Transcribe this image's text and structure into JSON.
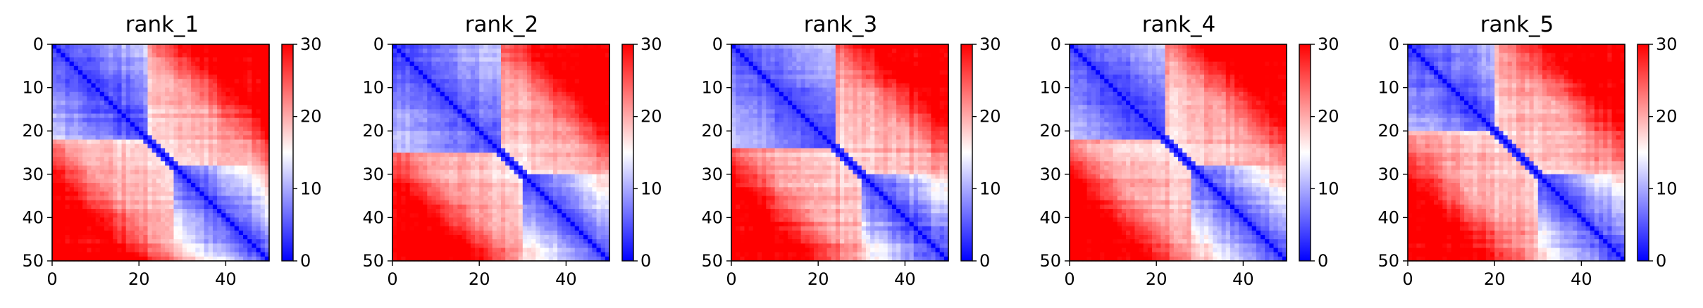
{
  "figure": {
    "panel_titles": [
      "rank_1",
      "rank_2",
      "rank_3",
      "rank_4",
      "rank_5"
    ]
  },
  "colors": {
    "low": "#0000ff",
    "mid": "#ffffff",
    "high": "#ff0000",
    "axis": "#000000",
    "background": "#ffffff"
  },
  "chart_data": [
    {
      "type": "heatmap",
      "title": "rank_1",
      "matrix_size": 50,
      "x_range": [
        0,
        50
      ],
      "y_range": [
        0,
        50
      ],
      "y_inverted": true,
      "x_ticks": [
        0,
        20,
        40
      ],
      "y_ticks": [
        0,
        10,
        20,
        30,
        40,
        50
      ],
      "colorbar": {
        "range": [
          0,
          30
        ],
        "ticks": [
          0,
          10,
          20,
          30
        ],
        "colormap": "bwr"
      },
      "blocks": [
        {
          "start": 0,
          "end": 22
        },
        {
          "start": 22,
          "end": 50
        }
      ],
      "secondary_domain": [
        28,
        50
      ],
      "seed": 11
    },
    {
      "type": "heatmap",
      "title": "rank_2",
      "matrix_size": 50,
      "x_range": [
        0,
        50
      ],
      "y_range": [
        0,
        50
      ],
      "y_inverted": true,
      "x_ticks": [
        0,
        20,
        40
      ],
      "y_ticks": [
        0,
        10,
        20,
        30,
        40,
        50
      ],
      "colorbar": {
        "range": [
          0,
          30
        ],
        "ticks": [
          0,
          10,
          20,
          30
        ],
        "colormap": "bwr"
      },
      "blocks": [
        {
          "start": 0,
          "end": 25
        },
        {
          "start": 25,
          "end": 50
        }
      ],
      "secondary_domain": [
        30,
        50
      ],
      "seed": 23
    },
    {
      "type": "heatmap",
      "title": "rank_3",
      "matrix_size": 50,
      "x_range": [
        0,
        50
      ],
      "y_range": [
        0,
        50
      ],
      "y_inverted": true,
      "x_ticks": [
        0,
        20,
        40
      ],
      "y_ticks": [
        0,
        10,
        20,
        30,
        40,
        50
      ],
      "colorbar": {
        "range": [
          0,
          30
        ],
        "ticks": [
          0,
          10,
          20,
          30
        ],
        "colormap": "bwr"
      },
      "blocks": [
        {
          "start": 0,
          "end": 24
        },
        {
          "start": 24,
          "end": 50
        }
      ],
      "secondary_domain": [
        30,
        50
      ],
      "seed": 37
    },
    {
      "type": "heatmap",
      "title": "rank_4",
      "matrix_size": 50,
      "x_range": [
        0,
        50
      ],
      "y_range": [
        0,
        50
      ],
      "y_inverted": true,
      "x_ticks": [
        0,
        20,
        40
      ],
      "y_ticks": [
        0,
        10,
        20,
        30,
        40,
        50
      ],
      "colorbar": {
        "range": [
          0,
          30
        ],
        "ticks": [
          0,
          10,
          20,
          30
        ],
        "colormap": "bwr"
      },
      "blocks": [
        {
          "start": 0,
          "end": 22
        },
        {
          "start": 22,
          "end": 50
        }
      ],
      "secondary_domain": [
        28,
        50
      ],
      "seed": 41
    },
    {
      "type": "heatmap",
      "title": "rank_5",
      "matrix_size": 50,
      "x_range": [
        0,
        50
      ],
      "y_range": [
        0,
        50
      ],
      "y_inverted": true,
      "x_ticks": [
        0,
        20,
        40
      ],
      "y_ticks": [
        0,
        10,
        20,
        30,
        40,
        50
      ],
      "colorbar": {
        "range": [
          0,
          30
        ],
        "ticks": [
          0,
          10,
          20,
          30
        ],
        "colormap": "bwr"
      },
      "blocks": [
        {
          "start": 0,
          "end": 20
        },
        {
          "start": 20,
          "end": 50
        }
      ],
      "secondary_domain": [
        30,
        50
      ],
      "seed": 53
    }
  ]
}
